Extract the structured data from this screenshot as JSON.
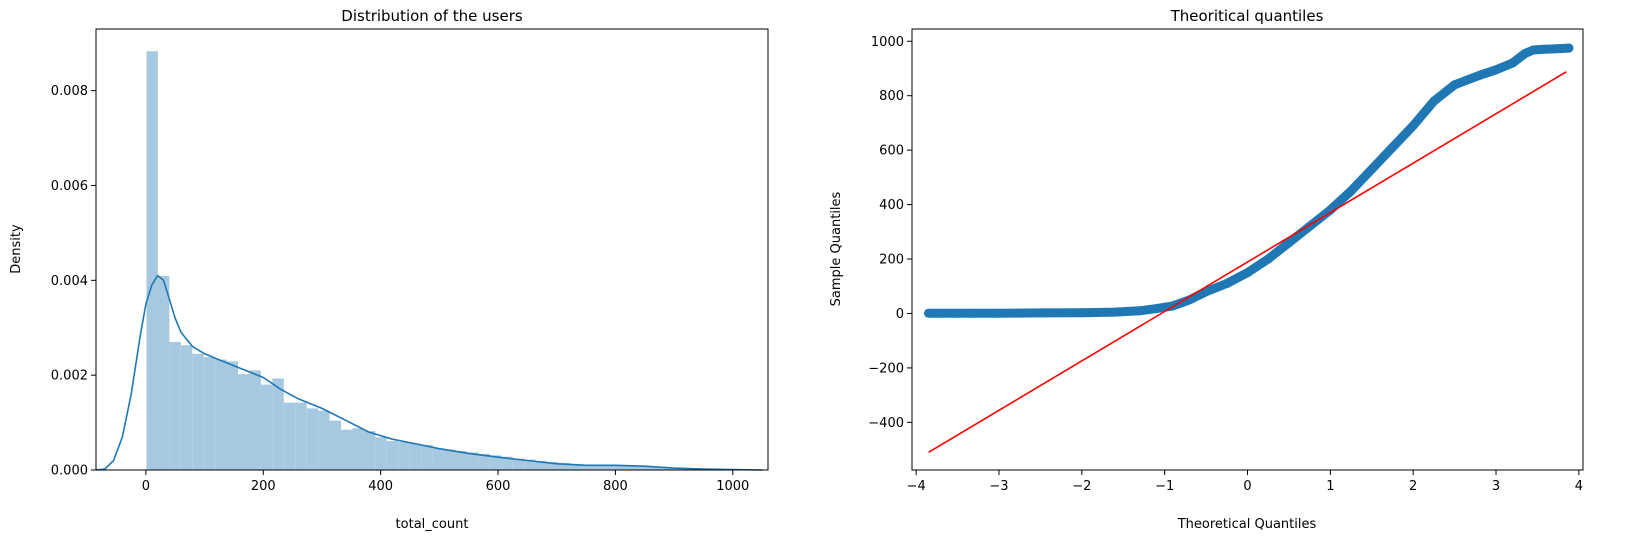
{
  "chart_data": [
    {
      "type": "bar",
      "title": "Distribution of the users",
      "xlabel": "total_count",
      "ylabel": "Density",
      "xlim": [
        -85,
        1060
      ],
      "ylim": [
        0,
        0.0093
      ],
      "xticks": [
        0,
        200,
        400,
        600,
        800,
        1000
      ],
      "xtick_labels": [
        "0",
        "200",
        "400",
        "600",
        "800",
        "1000"
      ],
      "yticks": [
        0,
        0.002,
        0.004,
        0.006,
        0.008
      ],
      "ytick_labels": [
        "0.000",
        "0.002",
        "0.004",
        "0.006",
        "0.008"
      ],
      "grid": false,
      "bin_width": 19.5,
      "bin_start": 1,
      "values": [
        0.00883,
        0.00409,
        0.0027,
        0.00263,
        0.00245,
        0.00238,
        0.00233,
        0.00229,
        0.00202,
        0.0021,
        0.0018,
        0.00193,
        0.00142,
        0.00142,
        0.0013,
        0.00125,
        0.00104,
        0.00085,
        0.00088,
        0.00082,
        0.00069,
        0.00061,
        0.00059,
        0.00056,
        0.00053,
        0.00046,
        0.00043,
        0.0004,
        0.00037,
        0.00034,
        0.00031,
        0.00028,
        0.00024,
        0.00022,
        0.00019,
        0.00017,
        0.00015,
        0.00013,
        0.00011,
        0.0001,
        0.0001,
        0.0001,
        9e-05,
        8e-05,
        6e-05,
        5e-05,
        4e-05,
        3e-05,
        2e-05,
        2e-05,
        1e-05,
        1e-05,
        1e-05
      ],
      "kde": {
        "x": [
          -85,
          -70,
          -55,
          -40,
          -25,
          -10,
          0,
          10,
          20,
          30,
          40,
          50,
          60,
          80,
          100,
          120,
          150,
          180,
          200,
          230,
          260,
          300,
          340,
          380,
          420,
          460,
          500,
          550,
          600,
          650,
          700,
          750,
          800,
          850,
          900,
          950,
          1000,
          1050
        ],
        "y": [
          0.0,
          2e-05,
          0.0002,
          0.0007,
          0.0016,
          0.0028,
          0.0035,
          0.0039,
          0.0041,
          0.004,
          0.0036,
          0.0032,
          0.0029,
          0.0026,
          0.00245,
          0.00235,
          0.0022,
          0.00205,
          0.00195,
          0.0017,
          0.0015,
          0.0013,
          0.00105,
          0.0008,
          0.00065,
          0.00055,
          0.00045,
          0.00035,
          0.00027,
          0.0002,
          0.00013,
          0.0001,
          0.0001,
          8e-05,
          4e-05,
          2e-05,
          1e-05,
          0.0
        ]
      },
      "colors": {
        "bars": "#a6c8e1",
        "kde": "#1f77b4"
      }
    },
    {
      "type": "scatter",
      "title": "Theoritical quantiles",
      "xlabel": "Theoretical Quantiles",
      "ylabel": "Sample Quantiles",
      "xlim": [
        -4.05,
        4.05
      ],
      "ylim": [
        -575,
        1045
      ],
      "xticks": [
        -4,
        -3,
        -2,
        -1,
        0,
        1,
        2,
        3,
        4
      ],
      "xtick_labels": [
        "−4",
        "−3",
        "−2",
        "−1",
        "0",
        "1",
        "2",
        "3",
        "4"
      ],
      "yticks": [
        -400,
        -200,
        0,
        200,
        400,
        600,
        800,
        1000
      ],
      "ytick_labels": [
        "−400",
        "−200",
        "0",
        "200",
        "400",
        "600",
        "800",
        "1000"
      ],
      "grid": false,
      "points": [
        [
          -3.85,
          1
        ],
        [
          -3.68,
          1
        ],
        [
          -3.55,
          1
        ],
        [
          -3.35,
          1
        ],
        [
          -3.0,
          1
        ],
        [
          -2.5,
          2
        ],
        [
          -2.0,
          3
        ],
        [
          -1.6,
          5
        ],
        [
          -1.3,
          10
        ],
        [
          -1.1,
          18
        ],
        [
          -0.9,
          28
        ],
        [
          -0.7,
          50
        ],
        [
          -0.5,
          80
        ],
        [
          -0.25,
          110
        ],
        [
          0.0,
          150
        ],
        [
          0.25,
          200
        ],
        [
          0.5,
          260
        ],
        [
          0.75,
          320
        ],
        [
          1.0,
          380
        ],
        [
          1.25,
          450
        ],
        [
          1.5,
          530
        ],
        [
          1.75,
          610
        ],
        [
          2.0,
          690
        ],
        [
          2.25,
          780
        ],
        [
          2.5,
          840
        ],
        [
          2.8,
          875
        ],
        [
          3.0,
          895
        ],
        [
          3.2,
          920
        ],
        [
          3.35,
          955
        ],
        [
          3.45,
          968
        ],
        [
          3.55,
          970
        ],
        [
          3.7,
          972
        ],
        [
          3.88,
          975
        ]
      ],
      "reference_line": {
        "x": [
          -3.85,
          3.85
        ],
        "y": [
          -510,
          888
        ]
      },
      "colors": {
        "points": "#1f77b4",
        "line": "#ff0000"
      }
    }
  ]
}
